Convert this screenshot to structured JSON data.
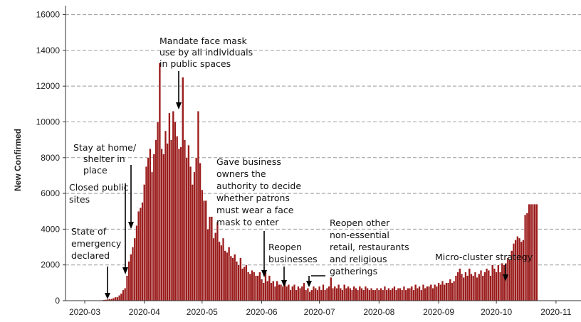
{
  "chart_data": {
    "type": "bar",
    "ylabel": "New Confirmed",
    "xlabel": "",
    "ylim": [
      0,
      16500
    ],
    "xlim": [
      "2020-02-20",
      "2020-11-14"
    ],
    "grid": "horizontal dashed",
    "yticks": [
      0,
      2000,
      4000,
      6000,
      8000,
      10000,
      12000,
      14000,
      16000
    ],
    "xticks": [
      "2020-03",
      "2020-04",
      "2020-05",
      "2020-06",
      "2020-07",
      "2020-08",
      "2020-09",
      "2020-10",
      "2020-11"
    ],
    "bar_color": "#9b1c1c",
    "start_date": "2020-03-01",
    "values": [
      0,
      0,
      0,
      0,
      10,
      10,
      10,
      20,
      30,
      30,
      50,
      60,
      80,
      100,
      100,
      150,
      200,
      200,
      300,
      400,
      600,
      700,
      1400,
      2200,
      2600,
      3000,
      3500,
      4200,
      5000,
      5200,
      5500,
      6500,
      7500,
      8000,
      8500,
      7200,
      8200,
      9000,
      10000,
      13300,
      8500,
      8200,
      9500,
      8800,
      10500,
      9000,
      10600,
      10000,
      9200,
      8500,
      8600,
      12500,
      9000,
      8000,
      8700,
      7500,
      6500,
      7200,
      8000,
      10600,
      7700,
      6200,
      5600,
      5600,
      4000,
      4700,
      4700,
      3500,
      3800,
      4400,
      3300,
      3100,
      3500,
      2800,
      2700,
      3000,
      2500,
      2400,
      2600,
      2200,
      2000,
      2400,
      1800,
      1900,
      2000,
      1600,
      1500,
      1700,
      1600,
      1400,
      1400,
      1600,
      1200,
      1000,
      1600,
      1100,
      1400,
      1000,
      1100,
      800,
      1100,
      900,
      900,
      800,
      1000,
      800,
      900,
      600,
      800,
      900,
      600,
      800,
      700,
      800,
      1000,
      600,
      700,
      500,
      600,
      800,
      700,
      600,
      800,
      600,
      900,
      600,
      700,
      800,
      1300,
      700,
      800,
      700,
      900,
      700,
      600,
      900,
      700,
      800,
      700,
      600,
      800,
      700,
      600,
      800,
      700,
      600,
      800,
      700,
      600,
      700,
      600,
      600,
      700,
      600,
      700,
      600,
      800,
      600,
      700,
      600,
      700,
      800,
      600,
      700,
      700,
      600,
      800,
      600,
      700,
      700,
      800,
      600,
      900,
      700,
      800,
      600,
      900,
      700,
      800,
      800,
      900,
      700,
      900,
      800,
      1000,
      900,
      1100,
      900,
      1000,
      1000,
      1200,
      1000,
      1100,
      1400,
      1600,
      1800,
      1500,
      1300,
      1600,
      1400,
      1800,
      1500,
      1400,
      1600,
      1300,
      1500,
      1700,
      1400,
      1600,
      1800,
      1700,
      1400,
      2000,
      1800,
      1600,
      2000,
      1600,
      2100,
      2000,
      2100,
      2400,
      2300,
      2800,
      3200,
      3400,
      3600,
      3500,
      3300,
      3400,
      4800,
      4900,
      5400,
      5400,
      5400,
      5400,
      5400
    ]
  },
  "annotations": [
    {
      "lines": [
        "State of",
        "emergency",
        "declared"
      ],
      "date": "2020-03-09"
    },
    {
      "lines": [
        "Closed public",
        "sites"
      ],
      "date": "2020-03-15"
    },
    {
      "lines": [
        "Stay at home/",
        "shelter in",
        "place"
      ],
      "date": "2020-03-19"
    },
    {
      "lines": [
        "Mandate face mask",
        "use by all individuals",
        "in public spaces"
      ],
      "date": "2020-04-15"
    },
    {
      "lines": [
        "Gave business",
        "owners the",
        "authority to decide",
        "whether patrons",
        "must wear a face",
        "mask to enter"
      ],
      "date": "2020-05-29"
    },
    {
      "lines": [
        "Reopen",
        "businesses"
      ],
      "date": "2020-06-08"
    },
    {
      "lines": [
        "Reopen other",
        "non-essential",
        "retail, restaurants",
        "and religious",
        "gatherings"
      ],
      "date": "2020-06-23"
    },
    {
      "lines": [
        "Micro-cluster strategy"
      ],
      "date": "2020-10-06"
    }
  ]
}
